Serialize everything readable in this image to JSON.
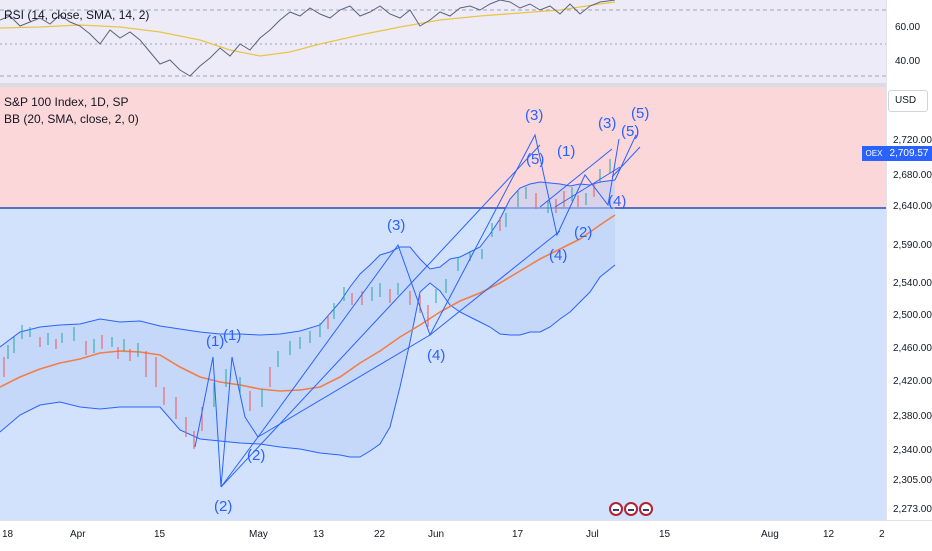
{
  "rsi": {
    "legend": "RSI (14, close, SMA, 14, 2)",
    "levels": [
      "60.00",
      "40.00"
    ]
  },
  "main": {
    "legend_title": "S&P 100 Index, 1D, SP",
    "legend_bb": "BB (20, SMA, close, 2, 0)",
    "currency": "USD",
    "symbol_tag": "OEX",
    "last_price": "2,709.57",
    "price_labels": [
      "2,720.00",
      "2,680.00",
      "2,640.00",
      "2,590.00",
      "2,540.00",
      "2,500.00",
      "2,460.00",
      "2,420.00",
      "2,380.00",
      "2,340.00",
      "2,305.00",
      "2,273.00"
    ],
    "wave_labels": [
      "(1)",
      "(1)",
      "(2)",
      "(2)",
      "(3)",
      "(4)",
      "(3)",
      "(5)",
      "(1)",
      "(4)",
      "(2)",
      "(3)",
      "(4)",
      "(5)",
      "(5)"
    ],
    "colors": {
      "upper_zone": "#fcd7d9",
      "lower_zone": "#d2e2fd",
      "horizontal_line": "#1f4fbf",
      "bb_band": "#2962ff",
      "bb_fill": "#c7dbff",
      "basis": "#f57c45",
      "rsi_line": "#5b6379",
      "rsi_ma": "#e8c547",
      "candle_up": "#26a69a",
      "candle_down": "#ef5350"
    }
  },
  "time_axis": {
    "labels": [
      "18",
      "Apr",
      "15",
      "May",
      "13",
      "22",
      "Jun",
      "17",
      "Jul",
      "15",
      "Aug",
      "12",
      "2"
    ]
  }
}
